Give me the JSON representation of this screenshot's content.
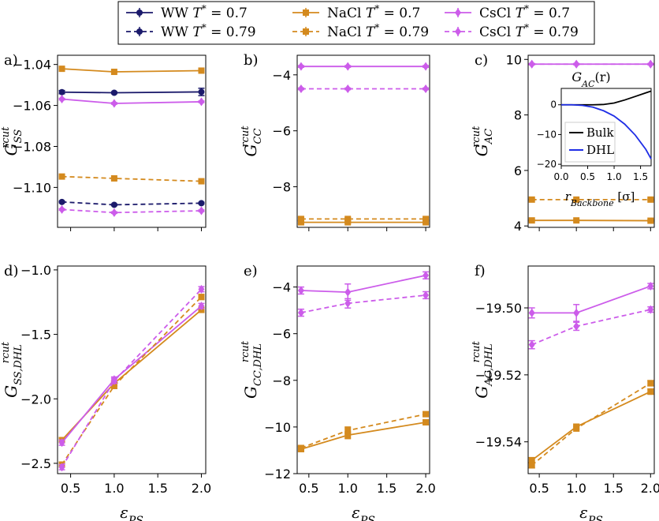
{
  "colors": {
    "WW": "#1b1a6b",
    "NaCl": "#d48a1e",
    "CsCl": "#cc5cea",
    "inset_bulk": "#000000",
    "inset_dhl": "#1f2ee6"
  },
  "legend": [
    {
      "label": "WW T* = 0.7",
      "series": "WW",
      "style": "solid",
      "marker": "circle"
    },
    {
      "label": "NaCl T* = 0.7",
      "series": "NaCl",
      "style": "solid",
      "marker": "square"
    },
    {
      "label": "CsCl T* = 0.7",
      "series": "CsCl",
      "style": "solid",
      "marker": "diamond"
    },
    {
      "label": "WW T* = 0.79",
      "series": "WW",
      "style": "dashed",
      "marker": "circle"
    },
    {
      "label": "NaCl T* = 0.79",
      "series": "NaCl",
      "style": "dashed",
      "marker": "square"
    },
    {
      "label": "CsCl T* = 0.79",
      "series": "CsCl",
      "style": "dashed",
      "marker": "diamond"
    }
  ],
  "x_common": {
    "label": "ε_PS",
    "ticks": [
      0.5,
      1.0,
      1.5,
      2.0
    ],
    "tick_labels": [
      "0.5",
      "1.0",
      "1.5",
      "2.0"
    ],
    "xlim": [
      0.35,
      2.05
    ]
  },
  "chart_data": [
    {
      "type": "line",
      "panel": "a)",
      "ylabel": "G_SS^rcut",
      "ylim": [
        -1.1195,
        -1.0355
      ],
      "yticks": [
        -1.04,
        -1.06,
        -1.08,
        -1.1
      ],
      "ytick_labels": [
        "−1.04",
        "−1.06",
        "−1.08",
        "−1.10"
      ],
      "show_xticklabels": false,
      "series": [
        {
          "name": "WW T* = 0.7",
          "group": "WW",
          "dashed": false,
          "x": [
            0.4,
            1.0,
            2.0
          ],
          "y": [
            -1.0535,
            -1.0538,
            -1.0534
          ],
          "err": [
            0.0008,
            0.0005,
            0.0018
          ]
        },
        {
          "name": "NaCl T* = 0.7",
          "group": "NaCl",
          "dashed": false,
          "x": [
            0.4,
            1.0,
            2.0
          ],
          "y": [
            -1.0421,
            -1.0436,
            -1.043
          ],
          "err": [
            0.0003,
            0.0003,
            0.0003
          ]
        },
        {
          "name": "CsCl T* = 0.7",
          "group": "CsCl",
          "dashed": false,
          "x": [
            0.4,
            1.0,
            2.0
          ],
          "y": [
            -1.0569,
            -1.059,
            -1.0582
          ],
          "err": [
            0.0004,
            0.0004,
            0.0004
          ]
        },
        {
          "name": "WW T* = 0.79",
          "group": "WW",
          "dashed": true,
          "x": [
            0.4,
            1.0,
            2.0
          ],
          "y": [
            -1.1071,
            -1.1085,
            -1.1077
          ],
          "err": [
            0.0004,
            0.0004,
            0.0004
          ]
        },
        {
          "name": "NaCl T* = 0.79",
          "group": "NaCl",
          "dashed": true,
          "x": [
            0.4,
            1.0,
            2.0
          ],
          "y": [
            -1.0947,
            -1.0956,
            -1.097
          ],
          "err": [
            0.0003,
            0.0003,
            0.0003
          ]
        },
        {
          "name": "CsCl T* = 0.79",
          "group": "CsCl",
          "dashed": true,
          "x": [
            0.4,
            1.0,
            2.0
          ],
          "y": [
            -1.1108,
            -1.1123,
            -1.1114
          ],
          "err": [
            0.0004,
            0.0004,
            0.0004
          ]
        }
      ]
    },
    {
      "type": "line",
      "panel": "b)",
      "ylabel": "G_CC^rcut",
      "ylim": [
        -9.45,
        -3.3
      ],
      "yticks": [
        -4,
        -6,
        -8
      ],
      "ytick_labels": [
        "−4",
        "−6",
        "−8"
      ],
      "show_xticklabels": false,
      "series": [
        {
          "name": "NaCl T* = 0.7",
          "group": "NaCl",
          "dashed": false,
          "x": [
            0.4,
            1.0,
            2.0
          ],
          "y": [
            -9.27,
            -9.27,
            -9.27
          ],
          "err": [
            0.05,
            0.05,
            0.05
          ]
        },
        {
          "name": "CsCl T* = 0.7",
          "group": "CsCl",
          "dashed": false,
          "x": [
            0.4,
            1.0,
            2.0
          ],
          "y": [
            -3.7,
            -3.7,
            -3.7
          ],
          "err": [
            0.03,
            0.03,
            0.03
          ]
        },
        {
          "name": "NaCl T* = 0.79",
          "group": "NaCl",
          "dashed": true,
          "x": [
            0.4,
            1.0,
            2.0
          ],
          "y": [
            -9.15,
            -9.15,
            -9.15
          ],
          "err": [
            0.05,
            0.05,
            0.05
          ]
        },
        {
          "name": "CsCl T* = 0.79",
          "group": "CsCl",
          "dashed": true,
          "x": [
            0.4,
            1.0,
            2.0
          ],
          "y": [
            -4.5,
            -4.5,
            -4.5
          ],
          "err": [
            0.03,
            0.03,
            0.03
          ]
        }
      ]
    },
    {
      "type": "line",
      "panel": "c)",
      "ylabel": "G_AC^rcut",
      "ylim": [
        3.95,
        10.15
      ],
      "yticks": [
        4,
        6,
        8,
        10
      ],
      "ytick_labels": [
        "4",
        "6",
        "8",
        "10"
      ],
      "show_xticklabels": false,
      "series": [
        {
          "name": "NaCl T* = 0.7",
          "group": "NaCl",
          "dashed": false,
          "x": [
            0.4,
            1.0,
            2.0
          ],
          "y": [
            4.2,
            4.2,
            4.19
          ],
          "err": [
            0.02,
            0.02,
            0.02
          ]
        },
        {
          "name": "CsCl T* = 0.7",
          "group": "CsCl",
          "dashed": false,
          "x": [
            0.4,
            1.0,
            2.0
          ],
          "y": [
            9.83,
            9.83,
            9.83
          ],
          "err": [
            0.02,
            0.02,
            0.02
          ]
        },
        {
          "name": "NaCl T* = 0.79",
          "group": "NaCl",
          "dashed": true,
          "x": [
            0.4,
            1.0,
            2.0
          ],
          "y": [
            4.95,
            4.95,
            4.95
          ],
          "err": [
            0.02,
            0.02,
            0.02
          ]
        },
        {
          "name": "CsCl T* = 0.79",
          "group": "CsCl",
          "dashed": true,
          "x": [
            0.4,
            1.0,
            2.0
          ],
          "y": [
            9.83,
            9.83,
            9.83
          ],
          "err": [
            0.02,
            0.02,
            0.02
          ]
        }
      ],
      "inset": {
        "type": "line",
        "title": "G_AC(r)",
        "xlabel": "r_Backbone [σ]",
        "xlim": [
          0.0,
          1.7
        ],
        "ylim": [
          -20.5,
          5.5
        ],
        "xticks": [
          0.0,
          0.5,
          1.0,
          1.5
        ],
        "xtick_labels": [
          "0.0",
          "0.5",
          "1.0",
          "1.5"
        ],
        "yticks": [
          0,
          -10,
          -20
        ],
        "ytick_labels": [
          "0",
          "−10",
          "−20"
        ],
        "legend": [
          "Bulk",
          "DHL"
        ],
        "series": [
          {
            "name": "Bulk",
            "x": [
              0.0,
              0.2,
              0.4,
              0.6,
              0.8,
              1.0,
              1.2,
              1.4,
              1.6,
              1.7
            ],
            "y": [
              0.0,
              0.0,
              0.0,
              0.0,
              0.1,
              0.6,
              1.6,
              2.8,
              4.0,
              4.6
            ]
          },
          {
            "name": "DHL",
            "x": [
              0.0,
              0.2,
              0.4,
              0.6,
              0.8,
              1.0,
              1.2,
              1.4,
              1.6,
              1.7
            ],
            "y": [
              0.0,
              0.0,
              -0.2,
              -0.8,
              -2.0,
              -3.8,
              -6.5,
              -10.2,
              -15.0,
              -18.2
            ]
          }
        ]
      }
    },
    {
      "type": "line",
      "panel": "d)",
      "ylabel": "G_SS,DHL^rcut",
      "ylim": [
        -2.58,
        -0.97
      ],
      "yticks": [
        -1.0,
        -1.5,
        -2.0,
        -2.5
      ],
      "ytick_labels": [
        "−1.0",
        "−1.5",
        "−2.0",
        "−2.5"
      ],
      "show_xticklabels": true,
      "series": [
        {
          "name": "NaCl T* = 0.7",
          "group": "NaCl",
          "dashed": false,
          "x": [
            0.4,
            1.0,
            2.0
          ],
          "y": [
            -2.32,
            -1.88,
            -1.31
          ],
          "err": [
            0.02,
            0.02,
            0.02
          ]
        },
        {
          "name": "CsCl T* = 0.7",
          "group": "CsCl",
          "dashed": false,
          "x": [
            0.4,
            1.0,
            2.0
          ],
          "y": [
            -2.34,
            -1.85,
            -1.28
          ],
          "err": [
            0.02,
            0.02,
            0.02
          ]
        },
        {
          "name": "NaCl T* = 0.79",
          "group": "NaCl",
          "dashed": true,
          "x": [
            0.4,
            1.0,
            2.0
          ],
          "y": [
            -2.51,
            -1.9,
            -1.21
          ],
          "err": [
            0.02,
            0.02,
            0.02
          ]
        },
        {
          "name": "CsCl T* = 0.79",
          "group": "CsCl",
          "dashed": true,
          "x": [
            0.4,
            1.0,
            2.0
          ],
          "y": [
            -2.53,
            -1.86,
            -1.15
          ],
          "err": [
            0.02,
            0.02,
            0.02
          ]
        }
      ]
    },
    {
      "type": "line",
      "panel": "e)",
      "ylabel": "G_CC,DHL^rcut",
      "ylim": [
        -12.0,
        -3.1
      ],
      "yticks": [
        -4,
        -6,
        -8,
        -10,
        -12
      ],
      "ytick_labels": [
        "−4",
        "−6",
        "−8",
        "−10",
        "−12"
      ],
      "show_xticklabels": true,
      "series": [
        {
          "name": "NaCl T* = 0.7",
          "group": "NaCl",
          "dashed": false,
          "x": [
            0.4,
            1.0,
            2.0
          ],
          "y": [
            -10.95,
            -10.35,
            -9.8
          ],
          "err": [
            0.1,
            0.15,
            0.1
          ]
        },
        {
          "name": "CsCl T* = 0.7",
          "group": "CsCl",
          "dashed": false,
          "x": [
            0.4,
            1.0,
            2.0
          ],
          "y": [
            -4.15,
            -4.22,
            -3.5
          ],
          "err": [
            0.15,
            0.35,
            0.15
          ]
        },
        {
          "name": "NaCl T* = 0.79",
          "group": "NaCl",
          "dashed": true,
          "x": [
            0.4,
            1.0,
            2.0
          ],
          "y": [
            -10.9,
            -10.15,
            -9.45
          ],
          "err": [
            0.1,
            0.15,
            0.1
          ]
        },
        {
          "name": "CsCl T* = 0.79",
          "group": "CsCl",
          "dashed": true,
          "x": [
            0.4,
            1.0,
            2.0
          ],
          "y": [
            -5.1,
            -4.7,
            -4.35
          ],
          "err": [
            0.15,
            0.2,
            0.15
          ]
        }
      ]
    },
    {
      "type": "line",
      "panel": "f)",
      "ylabel": "G_AC,DHL^rcut",
      "ylim": [
        -19.5495,
        -19.4875
      ],
      "yticks": [
        -19.5,
        -19.52,
        -19.54
      ],
      "ytick_labels": [
        "−19.50",
        "−19.52",
        "−19.54"
      ],
      "show_xticklabels": true,
      "series": [
        {
          "name": "NaCl T* = 0.7",
          "group": "NaCl",
          "dashed": false,
          "x": [
            0.4,
            1.0,
            2.0
          ],
          "y": [
            -19.5455,
            -19.5355,
            -19.525
          ],
          "err": [
            0.0008,
            0.0008,
            0.0008
          ]
        },
        {
          "name": "CsCl T* = 0.7",
          "group": "CsCl",
          "dashed": false,
          "x": [
            0.4,
            1.0,
            2.0
          ],
          "y": [
            -19.5015,
            -19.5015,
            -19.4935
          ],
          "err": [
            0.0015,
            0.0025,
            0.0008
          ]
        },
        {
          "name": "NaCl T* = 0.79",
          "group": "NaCl",
          "dashed": true,
          "x": [
            0.4,
            1.0,
            2.0
          ],
          "y": [
            -19.547,
            -19.536,
            -19.5225
          ],
          "err": [
            0.0008,
            0.0008,
            0.0008
          ]
        },
        {
          "name": "CsCl T* = 0.79",
          "group": "CsCl",
          "dashed": true,
          "x": [
            0.4,
            1.0,
            2.0
          ],
          "y": [
            -19.511,
            -19.5055,
            -19.5005
          ],
          "err": [
            0.0012,
            0.0012,
            0.0008
          ]
        }
      ]
    }
  ]
}
